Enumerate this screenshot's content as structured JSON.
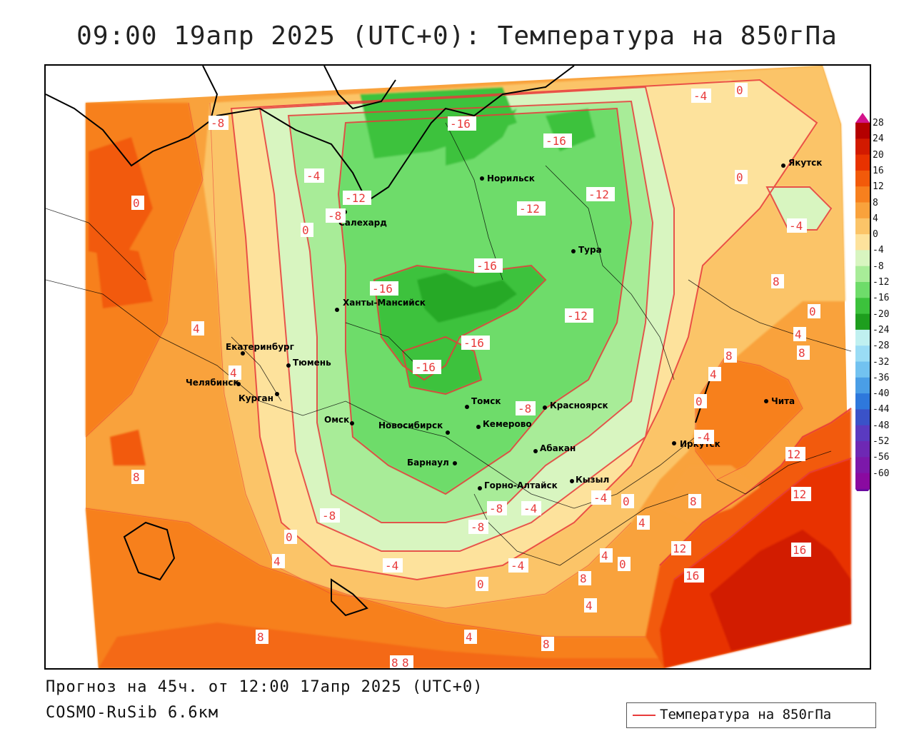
{
  "title": "09:00 19апр 2025 (UTC+0): Температура на 850гПа",
  "footer": {
    "forecast": "Прогноз на 45ч. от 12:00 17апр 2025 (UTC+0)",
    "model": "COSMO-RuSib 6.6км"
  },
  "legend": {
    "label": "Температура на 850гПа",
    "line_color": "#e83a3a"
  },
  "colorbar": {
    "levels": [
      "28",
      "24",
      "20",
      "16",
      "12",
      "8",
      "4",
      "0",
      "-4",
      "-8",
      "-12",
      "-16",
      "-20",
      "-24",
      "-28",
      "-32",
      "-36",
      "-40",
      "-44",
      "-48",
      "-52",
      "-56",
      "-60"
    ],
    "colors": [
      "#b40000",
      "#d21a00",
      "#e83200",
      "#f25a0a",
      "#f7801e",
      "#f9a23c",
      "#fbc468",
      "#fde29c",
      "#d8f5c0",
      "#a8ec98",
      "#6edc6a",
      "#3cc23c",
      "#1e9e1e",
      "#c0f0f0",
      "#9adcf5",
      "#72c2f0",
      "#4a9ee6",
      "#2e78dc",
      "#3a52c8",
      "#5a3ac0",
      "#6e28b4",
      "#7c18aa",
      "#8a0aa0"
    ],
    "top_color": "#d4148c",
    "bottom_color": "#6a0aa0"
  },
  "cities": [
    {
      "name": "Норильск"
    },
    {
      "name": "Салехард"
    },
    {
      "name": "Тура"
    },
    {
      "name": "Якутск"
    },
    {
      "name": "Ханты-Мансийск"
    },
    {
      "name": "Екатеринбург"
    },
    {
      "name": "Тюмень"
    },
    {
      "name": "Челябинск"
    },
    {
      "name": "Курган"
    },
    {
      "name": "Омск"
    },
    {
      "name": "Новосибирск"
    },
    {
      "name": "Томск"
    },
    {
      "name": "Кемерово"
    },
    {
      "name": "Красноярск"
    },
    {
      "name": "Абакан"
    },
    {
      "name": "Барнаул"
    },
    {
      "name": "Горно-Алтайск"
    },
    {
      "name": "Кызыл"
    },
    {
      "name": "Иркутск"
    },
    {
      "name": "Чита"
    }
  ],
  "contour_labels": [
    "-16",
    "-16",
    "-16",
    "-16",
    "-16",
    "-16",
    "-12",
    "-12",
    "-12",
    "-12",
    "-8",
    "-8",
    "-8",
    "-8",
    "-8",
    "-8",
    "-4",
    "-4",
    "-4",
    "-4",
    "-4",
    "-4",
    "-4",
    "-4",
    "0",
    "0",
    "0",
    "0",
    "0",
    "0",
    "0",
    "0",
    "0",
    "0",
    "4",
    "4",
    "4",
    "4",
    "4",
    "4",
    "4",
    "4",
    "4",
    "8",
    "8",
    "8",
    "8",
    "8",
    "8",
    "8",
    "8",
    "8",
    "8",
    "12",
    "12",
    "12",
    "16",
    "16"
  ]
}
